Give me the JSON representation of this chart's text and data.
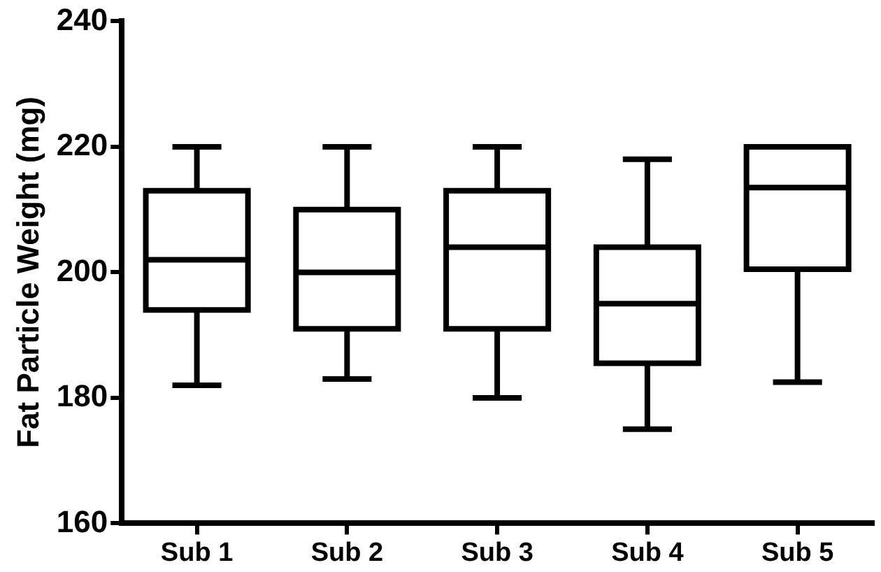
{
  "chart_data": {
    "type": "box",
    "ylabel": "Fat Particle Weight (mg)",
    "categories": [
      "Sub 1",
      "Sub 2",
      "Sub 3",
      "Sub 4",
      "Sub 5"
    ],
    "boxes": [
      {
        "low": 182,
        "q1": 194,
        "median": 202,
        "q3": 213,
        "high": 220
      },
      {
        "low": 183,
        "q1": 191,
        "median": 200,
        "q3": 210,
        "high": 220
      },
      {
        "low": 180,
        "q1": 191,
        "median": 204,
        "q3": 213,
        "high": 220
      },
      {
        "low": 175,
        "q1": 185.5,
        "median": 195,
        "q3": 204,
        "high": 218
      },
      {
        "low": 182.5,
        "q1": 200.5,
        "median": 213.5,
        "q3": 220,
        "high": 220
      }
    ],
    "color": "#000000",
    "ylim": [
      160,
      240
    ],
    "yticks": [
      160,
      180,
      200,
      220,
      240
    ]
  }
}
